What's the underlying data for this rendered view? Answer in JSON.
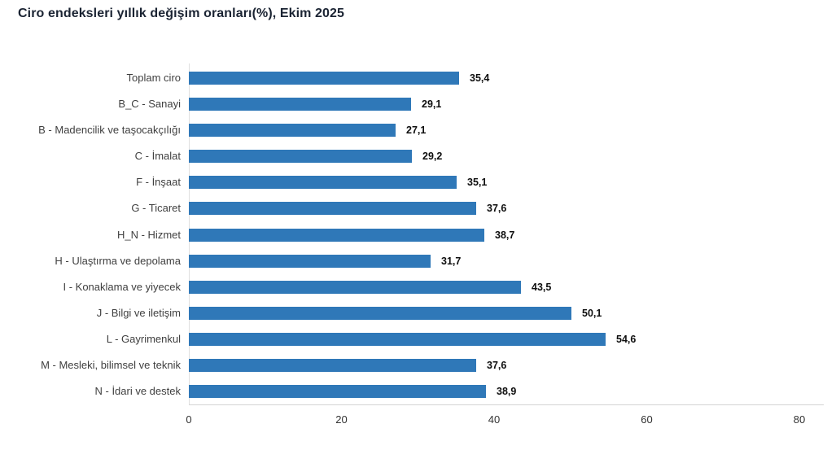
{
  "title": "Ciro endeksleri yıllık değişim oranları(%), Ekim 2025",
  "chart_data": {
    "type": "bar",
    "orientation": "horizontal",
    "title": "Ciro endeksleri yıllık değişim oranları(%), Ekim 2025",
    "categories": [
      "Toplam ciro",
      "B_C - Sanayi",
      "B - Madencilik ve taşocakçılığı",
      "C - İmalat",
      "F - İnşaat",
      "G - Ticaret",
      "H_N - Hizmet",
      "H - Ulaştırma ve depolama",
      "I - Konaklama ve yiyecek",
      "J - Bilgi ve iletişim",
      "L - Gayrimenkul",
      "M - Mesleki, bilimsel ve teknik",
      "N - İdari ve destek"
    ],
    "values": [
      35.4,
      29.1,
      27.1,
      29.2,
      35.1,
      37.6,
      38.7,
      31.7,
      43.5,
      50.1,
      54.6,
      37.6,
      38.9
    ],
    "value_labels": [
      "35,4",
      "29,1",
      "27,1",
      "29,2",
      "35,1",
      "37,6",
      "38,7",
      "31,7",
      "43,5",
      "50,1",
      "54,6",
      "37,6",
      "38,9"
    ],
    "xlabel": "",
    "ylabel": "",
    "xlim": [
      0,
      80
    ],
    "x_ticks": [
      0,
      20,
      40,
      60,
      80
    ],
    "bar_color": "#2f78b8",
    "grid": false,
    "legend": "none"
  }
}
